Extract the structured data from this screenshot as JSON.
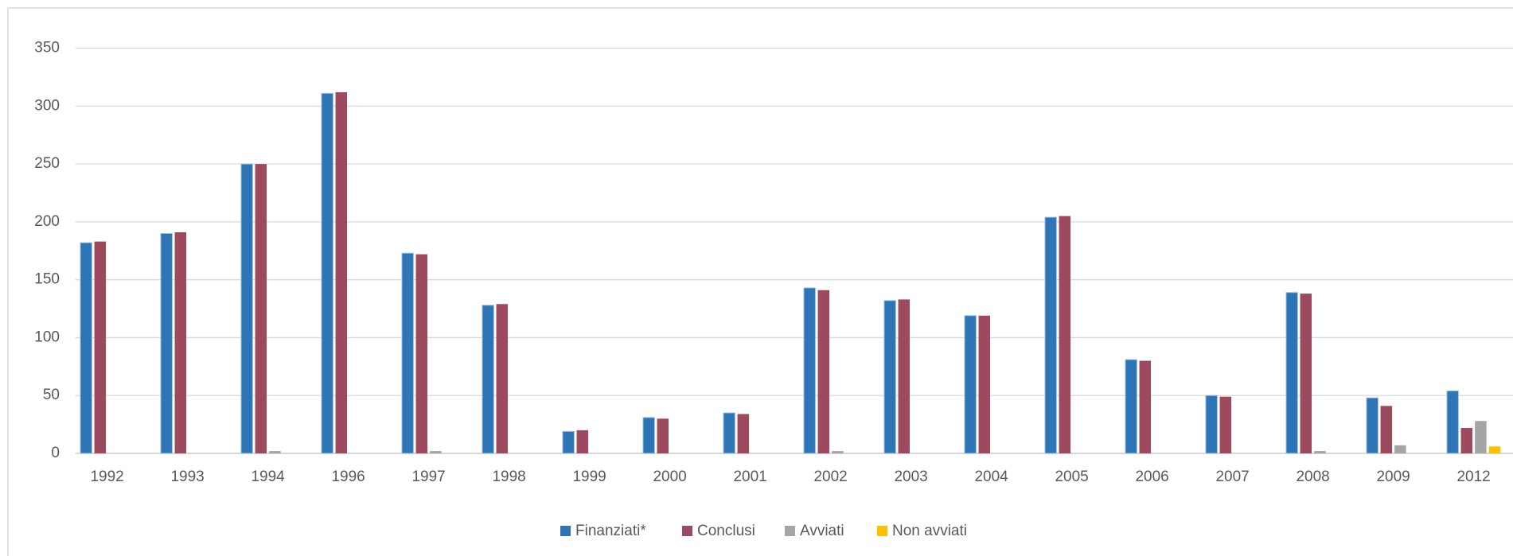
{
  "chart_data": {
    "type": "bar",
    "categories": [
      "1992",
      "1993",
      "1994",
      "1996",
      "1997",
      "1998",
      "1999",
      "2000",
      "2001",
      "2002",
      "2003",
      "2004",
      "2005",
      "2006",
      "2007",
      "2008",
      "2009",
      "2012"
    ],
    "series": [
      {
        "name": "Finanziati*",
        "color": "#2e75b6",
        "values": [
          182,
          190,
          250,
          311,
          173,
          128,
          19,
          31,
          35,
          143,
          132,
          119,
          204,
          81,
          50,
          139,
          48,
          54
        ]
      },
      {
        "name": "Conclusi",
        "color": "#9e4a5e",
        "values": [
          183,
          191,
          250,
          312,
          172,
          129,
          20,
          30,
          34,
          141,
          133,
          119,
          205,
          80,
          49,
          138,
          41,
          22
        ]
      },
      {
        "name": "Avviati",
        "color": "#a5a5a5",
        "values": [
          0,
          0,
          2,
          0,
          2,
          0,
          0,
          0,
          0,
          2,
          0,
          0,
          0,
          0,
          0,
          2,
          7,
          28
        ]
      },
      {
        "name": "Non avviati",
        "color": "#ffc000",
        "values": [
          0,
          0,
          0,
          0,
          0,
          0,
          0,
          0,
          0,
          0,
          0,
          0,
          0,
          0,
          0,
          0,
          0,
          6
        ]
      }
    ],
    "ylim": [
      0,
      350
    ],
    "yticks": [
      0,
      50,
      100,
      150,
      200,
      250,
      300,
      350
    ],
    "grid": true,
    "legend": "bottom"
  }
}
